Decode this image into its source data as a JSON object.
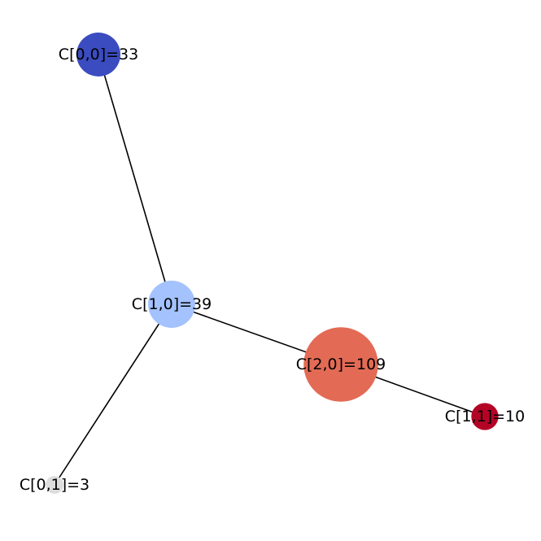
{
  "graph": {
    "nodes": [
      {
        "id": "C00",
        "label": "C[0,0]=33",
        "value": 33,
        "color": "#3b4cc0"
      },
      {
        "id": "C10",
        "label": "C[1,0]=39",
        "value": 39,
        "color": "#a3c2fe"
      },
      {
        "id": "C20",
        "label": "C[2,0]=109",
        "value": 109,
        "color": "#e36b55"
      },
      {
        "id": "C11",
        "label": "C[1,1]=10",
        "value": 10,
        "color": "#b40426"
      },
      {
        "id": "C01",
        "label": "C[0,1]=3",
        "value": 3,
        "color": "#dddddd"
      }
    ],
    "edges": [
      {
        "source": "C00",
        "target": "C10"
      },
      {
        "source": "C10",
        "target": "C20"
      },
      {
        "source": "C20",
        "target": "C11"
      },
      {
        "source": "C10",
        "target": "C01"
      }
    ]
  }
}
